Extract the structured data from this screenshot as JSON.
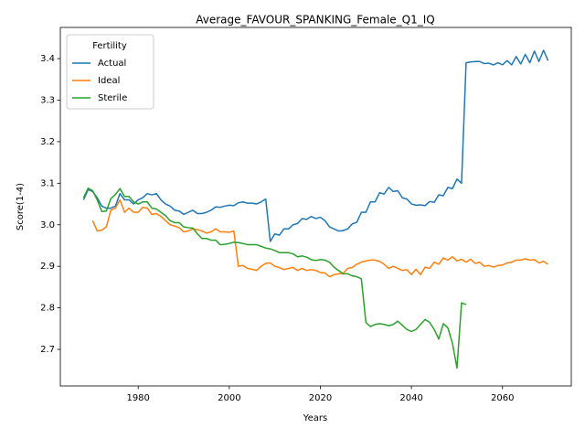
{
  "chart_data": {
    "type": "line",
    "title": "Average_FAVOUR_SPANKING_Female_Q1_IQ",
    "xlabel": "Years",
    "ylabel": "Score(1-4)",
    "legend_title": "Fertility",
    "legend": "upper left",
    "xlim": [
      1962.9,
      2075.1
    ],
    "xticks": [
      1980,
      2000,
      2020,
      2040,
      2060
    ],
    "ylim": [
      2.612,
      3.475
    ],
    "yticks": [
      2.7,
      2.8,
      2.9,
      {
        "value": 3,
        "label": "3.0"
      },
      3.1,
      3.2,
      3.3,
      3.4
    ],
    "x": [
      1968,
      1969,
      1970,
      1971,
      1972,
      1973,
      1974,
      1975,
      1976,
      1977,
      1978,
      1979,
      1980,
      1981,
      1982,
      1983,
      1984,
      1985,
      1986,
      1987,
      1988,
      1989,
      1990,
      1991,
      1992,
      1993,
      1994,
      1995,
      1996,
      1997,
      1998,
      1999,
      2000,
      2001,
      2002,
      2003,
      2004,
      2005,
      2006,
      2007,
      2008,
      2009,
      2010,
      2011,
      2012,
      2013,
      2014,
      2015,
      2016,
      2017,
      2018,
      2019,
      2020,
      2021,
      2022,
      2023,
      2024,
      2025,
      2026,
      2027,
      2028,
      2029,
      2030,
      2031,
      2032,
      2033,
      2034,
      2035,
      2036,
      2037,
      2038,
      2039,
      2040,
      2041,
      2042,
      2043,
      2044,
      2045,
      2046,
      2047,
      2048,
      2049,
      2050,
      2051,
      2052,
      2053,
      2054,
      2055,
      2056,
      2057,
      2058,
      2059,
      2060,
      2061,
      2062,
      2063,
      2064,
      2065,
      2066,
      2067,
      2068,
      2069,
      2070
    ],
    "series": [
      {
        "name": "Actual",
        "color": "#1f77b4",
        "values": [
          3.06,
          3.085,
          3.08,
          3.065,
          3.045,
          3.04,
          3.04,
          3.045,
          3.075,
          3.06,
          3.06,
          3.05,
          3.06,
          3.065,
          3.075,
          3.072,
          3.075,
          3.06,
          3.05,
          3.045,
          3.035,
          3.033,
          3.025,
          3.03,
          3.035,
          3.027,
          3.027,
          3.03,
          3.035,
          3.043,
          3.042,
          3.045,
          3.047,
          3.046,
          3.053,
          3.055,
          3.052,
          3.052,
          3.05,
          3.055,
          3.062,
          2.96,
          2.978,
          2.975,
          2.99,
          2.99,
          3.0,
          3.003,
          3.015,
          3.013,
          3.02,
          3.015,
          3.018,
          3.01,
          2.995,
          2.99,
          2.985,
          2.986,
          2.99,
          3.002,
          3.006,
          3.03,
          3.03,
          3.055,
          3.055,
          3.077,
          3.074,
          3.09,
          3.08,
          3.082,
          3.065,
          3.062,
          3.05,
          3.047,
          3.048,
          3.046,
          3.056,
          3.054,
          3.072,
          3.07,
          3.09,
          3.087,
          3.11,
          3.1,
          3.39,
          3.392,
          3.393,
          3.393,
          3.388,
          3.389,
          3.385,
          3.39,
          3.385,
          3.395,
          3.385,
          3.405,
          3.387,
          3.41,
          3.39,
          3.418,
          3.393,
          3.42,
          3.395
        ]
      },
      {
        "name": "Ideal",
        "color": "#ff7f0e",
        "values": [
          null,
          null,
          3.01,
          2.985,
          2.987,
          2.995,
          3.035,
          3.04,
          3.06,
          3.03,
          3.04,
          3.03,
          3.03,
          3.042,
          3.04,
          3.025,
          3.027,
          3.02,
          3.01,
          3.0,
          2.997,
          2.993,
          2.983,
          2.985,
          2.99,
          2.988,
          2.985,
          2.98,
          2.983,
          2.99,
          2.983,
          2.983,
          2.982,
          2.985,
          2.9,
          2.902,
          2.895,
          2.893,
          2.89,
          2.9,
          2.907,
          2.908,
          2.9,
          2.897,
          2.892,
          2.895,
          2.897,
          2.89,
          2.895,
          2.89,
          2.892,
          2.89,
          2.885,
          2.884,
          2.875,
          2.88,
          2.882,
          2.883,
          2.895,
          2.897,
          2.905,
          2.91,
          2.913,
          2.915,
          2.915,
          2.912,
          2.905,
          2.895,
          2.9,
          2.895,
          2.89,
          2.892,
          2.88,
          2.893,
          2.88,
          2.898,
          2.895,
          2.91,
          2.905,
          2.92,
          2.915,
          2.923,
          2.913,
          2.917,
          2.91,
          2.917,
          2.907,
          2.91,
          2.9,
          2.902,
          2.898,
          2.902,
          2.903,
          2.908,
          2.91,
          2.915,
          2.915,
          2.918,
          2.915,
          2.916,
          2.908,
          2.912,
          2.905
        ]
      },
      {
        "name": "Sterile",
        "color": "#2ca02c",
        "values": [
          3.065,
          3.088,
          3.082,
          3.06,
          3.032,
          3.033,
          3.063,
          3.073,
          3.087,
          3.068,
          3.068,
          3.055,
          3.05,
          3.055,
          3.055,
          3.04,
          3.038,
          3.03,
          3.022,
          3.01,
          3.005,
          3.005,
          2.995,
          2.993,
          2.992,
          2.978,
          2.967,
          2.967,
          2.963,
          2.963,
          2.952,
          2.953,
          2.955,
          2.958,
          2.957,
          2.955,
          2.952,
          2.952,
          2.952,
          2.948,
          2.944,
          2.942,
          2.938,
          2.933,
          2.933,
          2.933,
          2.93,
          2.923,
          2.925,
          2.922,
          2.916,
          2.914,
          2.916,
          2.915,
          2.91,
          2.898,
          2.89,
          2.882,
          2.882,
          2.877,
          2.875,
          2.87,
          2.765,
          2.755,
          2.76,
          2.762,
          2.76,
          2.757,
          2.76,
          2.768,
          2.758,
          2.748,
          2.743,
          2.748,
          2.76,
          2.772,
          2.765,
          2.748,
          2.725,
          2.762,
          2.752,
          2.715,
          2.655,
          2.812,
          2.808,
          null,
          null,
          null,
          null,
          null,
          null,
          null,
          null,
          null,
          null,
          null,
          null,
          null,
          null,
          null,
          null,
          null,
          null
        ]
      }
    ]
  }
}
